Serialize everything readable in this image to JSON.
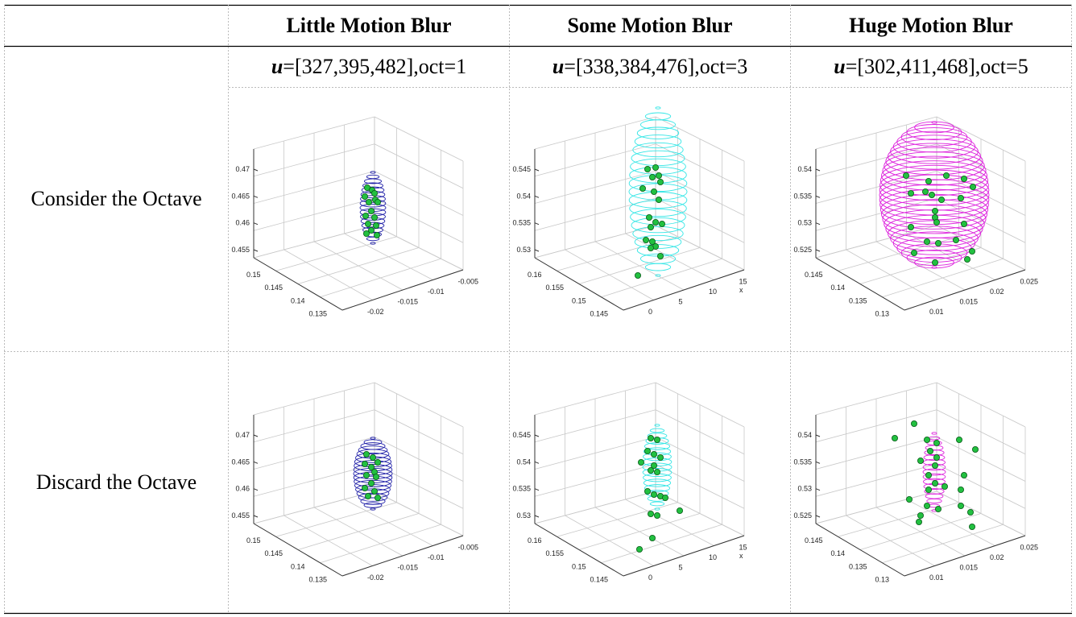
{
  "columns": [
    {
      "title": "Little Motion Blur",
      "u_symbol": "u",
      "u_value": "=[327,395,482],oct=1"
    },
    {
      "title": "Some Motion Blur",
      "u_symbol": "u",
      "u_value": "=[338,384,476],oct=3"
    },
    {
      "title": "Huge Motion Blur",
      "u_symbol": "u",
      "u_value": "=[302,411,468],oct=5"
    }
  ],
  "rows": [
    {
      "label": "Consider the Octave"
    },
    {
      "label": "Discard the Octave"
    }
  ],
  "colors": {
    "ellipsoid_1": "#1f1fa8",
    "ellipsoid_3": "#33e6e6",
    "ellipsoid_5": "#dd22dd",
    "points": "#22c040",
    "grid": "#c8c8c8"
  },
  "plots": [
    {
      "z_ticks": [
        "0.47",
        "0.465",
        "0.46",
        "0.455"
      ],
      "y_ticks": [
        "0.15",
        "0.145",
        "0.14",
        "0.135"
      ],
      "x_ticks": [
        "-0.02",
        "-0.015",
        "-0.01",
        "-0.005"
      ],
      "x_axis_label": ""
    },
    {
      "z_ticks": [
        "0.545",
        "0.54",
        "0.535",
        "0.53"
      ],
      "y_ticks": [
        "0.16",
        "0.155",
        "0.15",
        "0.145"
      ],
      "x_ticks": [
        "0",
        "5",
        "10",
        "15"
      ],
      "x_axis_label": "x"
    },
    {
      "z_ticks": [
        "0.54",
        "0.535",
        "0.53",
        "0.525"
      ],
      "y_ticks": [
        "0.145",
        "0.14",
        "0.135",
        "0.13"
      ],
      "x_ticks": [
        "0.01",
        "0.015",
        "0.02",
        "0.025"
      ],
      "x_axis_label": ""
    },
    {
      "z_ticks": [
        "0.47",
        "0.465",
        "0.46",
        "0.455"
      ],
      "y_ticks": [
        "0.15",
        "0.145",
        "0.14",
        "0.135"
      ],
      "x_ticks": [
        "-0.02",
        "-0.015",
        "-0.01",
        "-0.005"
      ],
      "x_axis_label": ""
    },
    {
      "z_ticks": [
        "0.545",
        "0.54",
        "0.535",
        "0.53"
      ],
      "y_ticks": [
        "0.16",
        "0.155",
        "0.15",
        "0.145"
      ],
      "x_ticks": [
        "0",
        "5",
        "10",
        "15"
      ],
      "x_axis_label": "x"
    },
    {
      "z_ticks": [
        "0.54",
        "0.535",
        "0.53",
        "0.525"
      ],
      "y_ticks": [
        "0.145",
        "0.14",
        "0.135",
        "0.13"
      ],
      "x_ticks": [
        "0.01",
        "0.015",
        "0.02",
        "0.025"
      ],
      "x_axis_label": ""
    }
  ]
}
